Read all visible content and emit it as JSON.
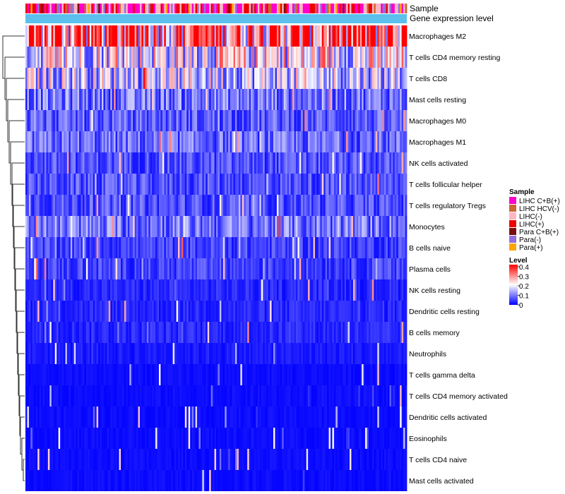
{
  "chart_data": {
    "type": "heatmap",
    "title": "",
    "annotation_tracks": [
      {
        "name": "Sample"
      },
      {
        "name": "Gene expression level"
      }
    ],
    "rows": [
      {
        "label": "Macrophages M2",
        "mean": 0.33
      },
      {
        "label": "T cells CD4 memory resting",
        "mean": 0.19
      },
      {
        "label": "T cells CD8",
        "mean": 0.16
      },
      {
        "label": "Mast cells resting",
        "mean": 0.09
      },
      {
        "label": "Macrophages M0",
        "mean": 0.07
      },
      {
        "label": "Macrophages M1",
        "mean": 0.08
      },
      {
        "label": "NK cells activated",
        "mean": 0.06
      },
      {
        "label": "T cells follicular helper",
        "mean": 0.06
      },
      {
        "label": "T cells regulatory  Tregs",
        "mean": 0.06
      },
      {
        "label": "Monocytes",
        "mean": 0.09
      },
      {
        "label": "B cells naive",
        "mean": 0.05
      },
      {
        "label": "Plasma cells",
        "mean": 0.05
      },
      {
        "label": "NK cells resting",
        "mean": 0.03
      },
      {
        "label": "Dendritic cells resting",
        "mean": 0.03
      },
      {
        "label": "B cells memory",
        "mean": 0.03
      },
      {
        "label": "Neutrophils",
        "mean": 0.02
      },
      {
        "label": "T cells gamma delta",
        "mean": 0.01
      },
      {
        "label": "T cells CD4 memory activated",
        "mean": 0.01
      },
      {
        "label": "Dendritic cells activated",
        "mean": 0.01
      },
      {
        "label": "Eosinophils",
        "mean": 0.01
      },
      {
        "label": "T cells CD4 naive",
        "mean": 0.01
      },
      {
        "label": "Mast cells activated",
        "mean": 0.01
      }
    ],
    "legend_sample": {
      "title": "Sample",
      "entries": [
        {
          "label": "LIHC C+B(+)",
          "color": "#ff00cc"
        },
        {
          "label": "LIHC HCV(-)",
          "color": "#cc6633"
        },
        {
          "label": "LIHC(-)",
          "color": "#ffb6c1"
        },
        {
          "label": "LIHC(+)",
          "color": "#ee0000"
        },
        {
          "label": "Para C+B(+)",
          "color": "#7a0f0f"
        },
        {
          "label": "Para(-)",
          "color": "#9370db"
        },
        {
          "label": "Para(+)",
          "color": "#ffa500"
        }
      ]
    },
    "legend_level": {
      "title": "Level",
      "ticks": [
        "0.4",
        "0.3",
        "0.2",
        "0.1",
        "0"
      ],
      "range": [
        0,
        0.4
      ],
      "colors": [
        "#0000ff",
        "#ffffff",
        "#ff0000"
      ]
    },
    "gene_expression_color": "#5bc0eb"
  }
}
